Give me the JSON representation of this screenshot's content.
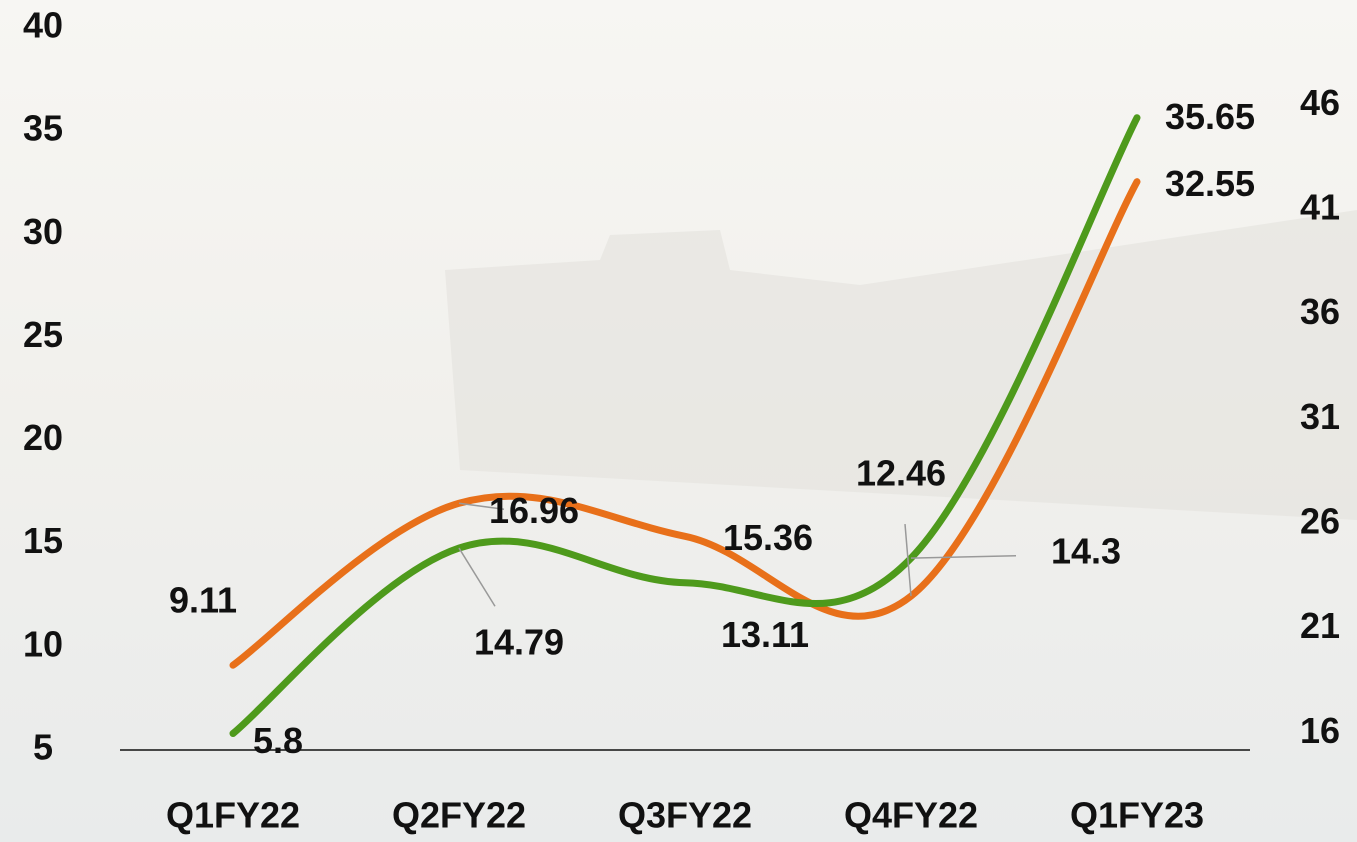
{
  "chart_data": {
    "type": "line",
    "categories": [
      "Q1FY22",
      "Q2FY22",
      "Q3FY22",
      "Q4FY22",
      "Q1FY23"
    ],
    "series": [
      {
        "color": "#e8701a",
        "values": [
          9.11,
          16.96,
          15.36,
          12.46,
          32.55
        ]
      },
      {
        "color": "#4e9a1c",
        "values": [
          5.8,
          14.79,
          13.11,
          14.3,
          35.65
        ]
      }
    ],
    "ylim": [
      5,
      40
    ],
    "yticks": [
      5,
      10,
      15,
      20,
      25,
      30,
      35,
      40
    ],
    "y2lim": [
      15.2,
      49.7
    ],
    "y2ticks": [
      16,
      21,
      26,
      31,
      36,
      41,
      46
    ],
    "smooth": true
  }
}
